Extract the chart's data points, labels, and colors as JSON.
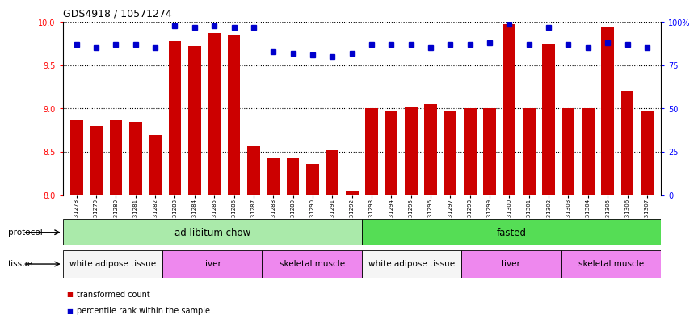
{
  "title": "GDS4918 / 10571274",
  "samples": [
    "GSM1131278",
    "GSM1131279",
    "GSM1131280",
    "GSM1131281",
    "GSM1131282",
    "GSM1131283",
    "GSM1131284",
    "GSM1131285",
    "GSM1131286",
    "GSM1131287",
    "GSM1131288",
    "GSM1131289",
    "GSM1131290",
    "GSM1131291",
    "GSM1131292",
    "GSM1131293",
    "GSM1131294",
    "GSM1131295",
    "GSM1131296",
    "GSM1131297",
    "GSM1131298",
    "GSM1131299",
    "GSM1131300",
    "GSM1131301",
    "GSM1131302",
    "GSM1131303",
    "GSM1131304",
    "GSM1131305",
    "GSM1131306",
    "GSM1131307"
  ],
  "bar_values": [
    8.87,
    8.8,
    8.87,
    8.85,
    8.7,
    9.78,
    9.72,
    9.87,
    9.85,
    8.57,
    8.43,
    8.43,
    8.36,
    8.52,
    8.05,
    9.0,
    8.97,
    9.02,
    9.05,
    8.97,
    9.0,
    9.0,
    9.98,
    9.0,
    9.75,
    9.0,
    9.0,
    9.95,
    9.2,
    8.97
  ],
  "percentile_values": [
    87,
    85,
    87,
    87,
    85,
    98,
    97,
    98,
    97,
    97,
    83,
    82,
    81,
    80,
    82,
    87,
    87,
    87,
    85,
    87,
    87,
    88,
    99,
    87,
    97,
    87,
    85,
    88,
    87,
    85
  ],
  "bar_color": "#cc0000",
  "dot_color": "#0000cc",
  "ylim_left": [
    8.0,
    10.0
  ],
  "ylim_right": [
    0,
    100
  ],
  "yticks_left": [
    8.0,
    8.5,
    9.0,
    9.5,
    10.0
  ],
  "yticks_right": [
    0,
    25,
    50,
    75,
    100
  ],
  "ytick_labels_right": [
    "0",
    "25",
    "50",
    "75",
    "100%"
  ],
  "protocol_groups": [
    {
      "label": "ad libitum chow",
      "start": 0,
      "end": 14,
      "color": "#aaeaaa"
    },
    {
      "label": "fasted",
      "start": 15,
      "end": 29,
      "color": "#55dd55"
    }
  ],
  "tissue_groups": [
    {
      "label": "white adipose tissue",
      "start": 0,
      "end": 4,
      "color": "#f5f5f5"
    },
    {
      "label": "liver",
      "start": 5,
      "end": 9,
      "color": "#ee88ee"
    },
    {
      "label": "skeletal muscle",
      "start": 10,
      "end": 14,
      "color": "#ee88ee"
    },
    {
      "label": "white adipose tissue",
      "start": 15,
      "end": 19,
      "color": "#f5f5f5"
    },
    {
      "label": "liver",
      "start": 20,
      "end": 24,
      "color": "#ee88ee"
    },
    {
      "label": "skeletal muscle",
      "start": 25,
      "end": 29,
      "color": "#ee88ee"
    }
  ],
  "legend_items": [
    {
      "label": "transformed count",
      "color": "#cc0000"
    },
    {
      "label": "percentile rank within the sample",
      "color": "#0000cc"
    }
  ]
}
